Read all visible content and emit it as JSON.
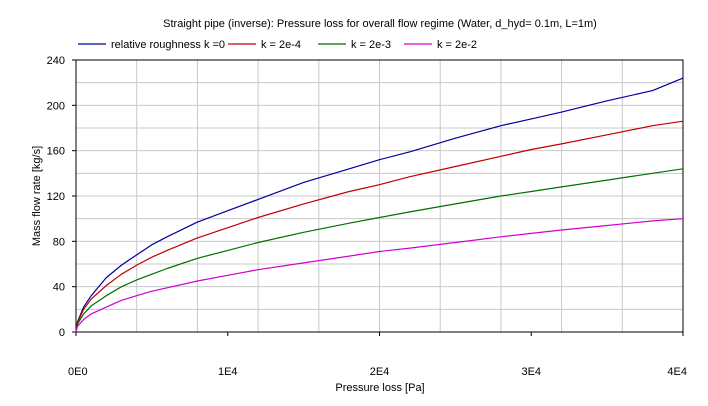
{
  "chart_data": {
    "type": "line",
    "title": "Straight pipe (inverse): Pressure loss for overall flow regime (Water, d_hyd= 0.1m, L=1m)",
    "xlabel": "Pressure loss [Pa]",
    "ylabel": "Mass flow rate [kg/s]",
    "xlim": [
      0,
      40000
    ],
    "ylim": [
      0,
      240
    ],
    "grid": true,
    "legend_position": "top",
    "x_ticks": [
      {
        "value": 0,
        "label": "0E0"
      },
      {
        "value": 10000,
        "label": "1E4"
      },
      {
        "value": 20000,
        "label": "2E4"
      },
      {
        "value": 30000,
        "label": "3E4"
      },
      {
        "value": 40000,
        "label": "4E4"
      }
    ],
    "y_ticks": [
      {
        "value": 0,
        "label": "0"
      },
      {
        "value": 40,
        "label": "40"
      },
      {
        "value": 80,
        "label": "80"
      },
      {
        "value": 120,
        "label": "120"
      },
      {
        "value": 160,
        "label": "160"
      },
      {
        "value": 200,
        "label": "200"
      },
      {
        "value": 240,
        "label": "240"
      }
    ],
    "x": [
      0,
      100,
      500,
      1000,
      2000,
      3000,
      4000,
      5000,
      6000,
      8000,
      10000,
      12000,
      15000,
      18000,
      20000,
      22000,
      25000,
      28000,
      30000,
      32000,
      35000,
      38000,
      40000
    ],
    "series": [
      {
        "name": "relative roughness k =0",
        "color": "#0000a0",
        "values": [
          0,
          9,
          22,
          32,
          48,
          59,
          68,
          77,
          84,
          97,
          107,
          117,
          132,
          144,
          152,
          159,
          171,
          182,
          188,
          194,
          204,
          213,
          224
        ]
      },
      {
        "name": "k = 2e-4",
        "color": "#c00000",
        "values": [
          0,
          8,
          20,
          29,
          41,
          51,
          59,
          66,
          72,
          83,
          92,
          101,
          113,
          124,
          130,
          137,
          146,
          155,
          161,
          166,
          174,
          182,
          186
        ]
      },
      {
        "name": "k = 2e-3",
        "color": "#007000",
        "values": [
          0,
          7,
          16,
          23,
          32,
          40,
          46,
          51,
          56,
          65,
          72,
          79,
          88,
          96,
          101,
          106,
          113,
          120,
          124,
          128,
          134,
          140,
          144
        ]
      },
      {
        "name": "k = 2e-2",
        "color": "#d000d0",
        "values": [
          0,
          5,
          11,
          16,
          22,
          28,
          32,
          36,
          39,
          45,
          50,
          55,
          61,
          67,
          71,
          74,
          79,
          84,
          87,
          90,
          94,
          98,
          100
        ]
      }
    ]
  }
}
